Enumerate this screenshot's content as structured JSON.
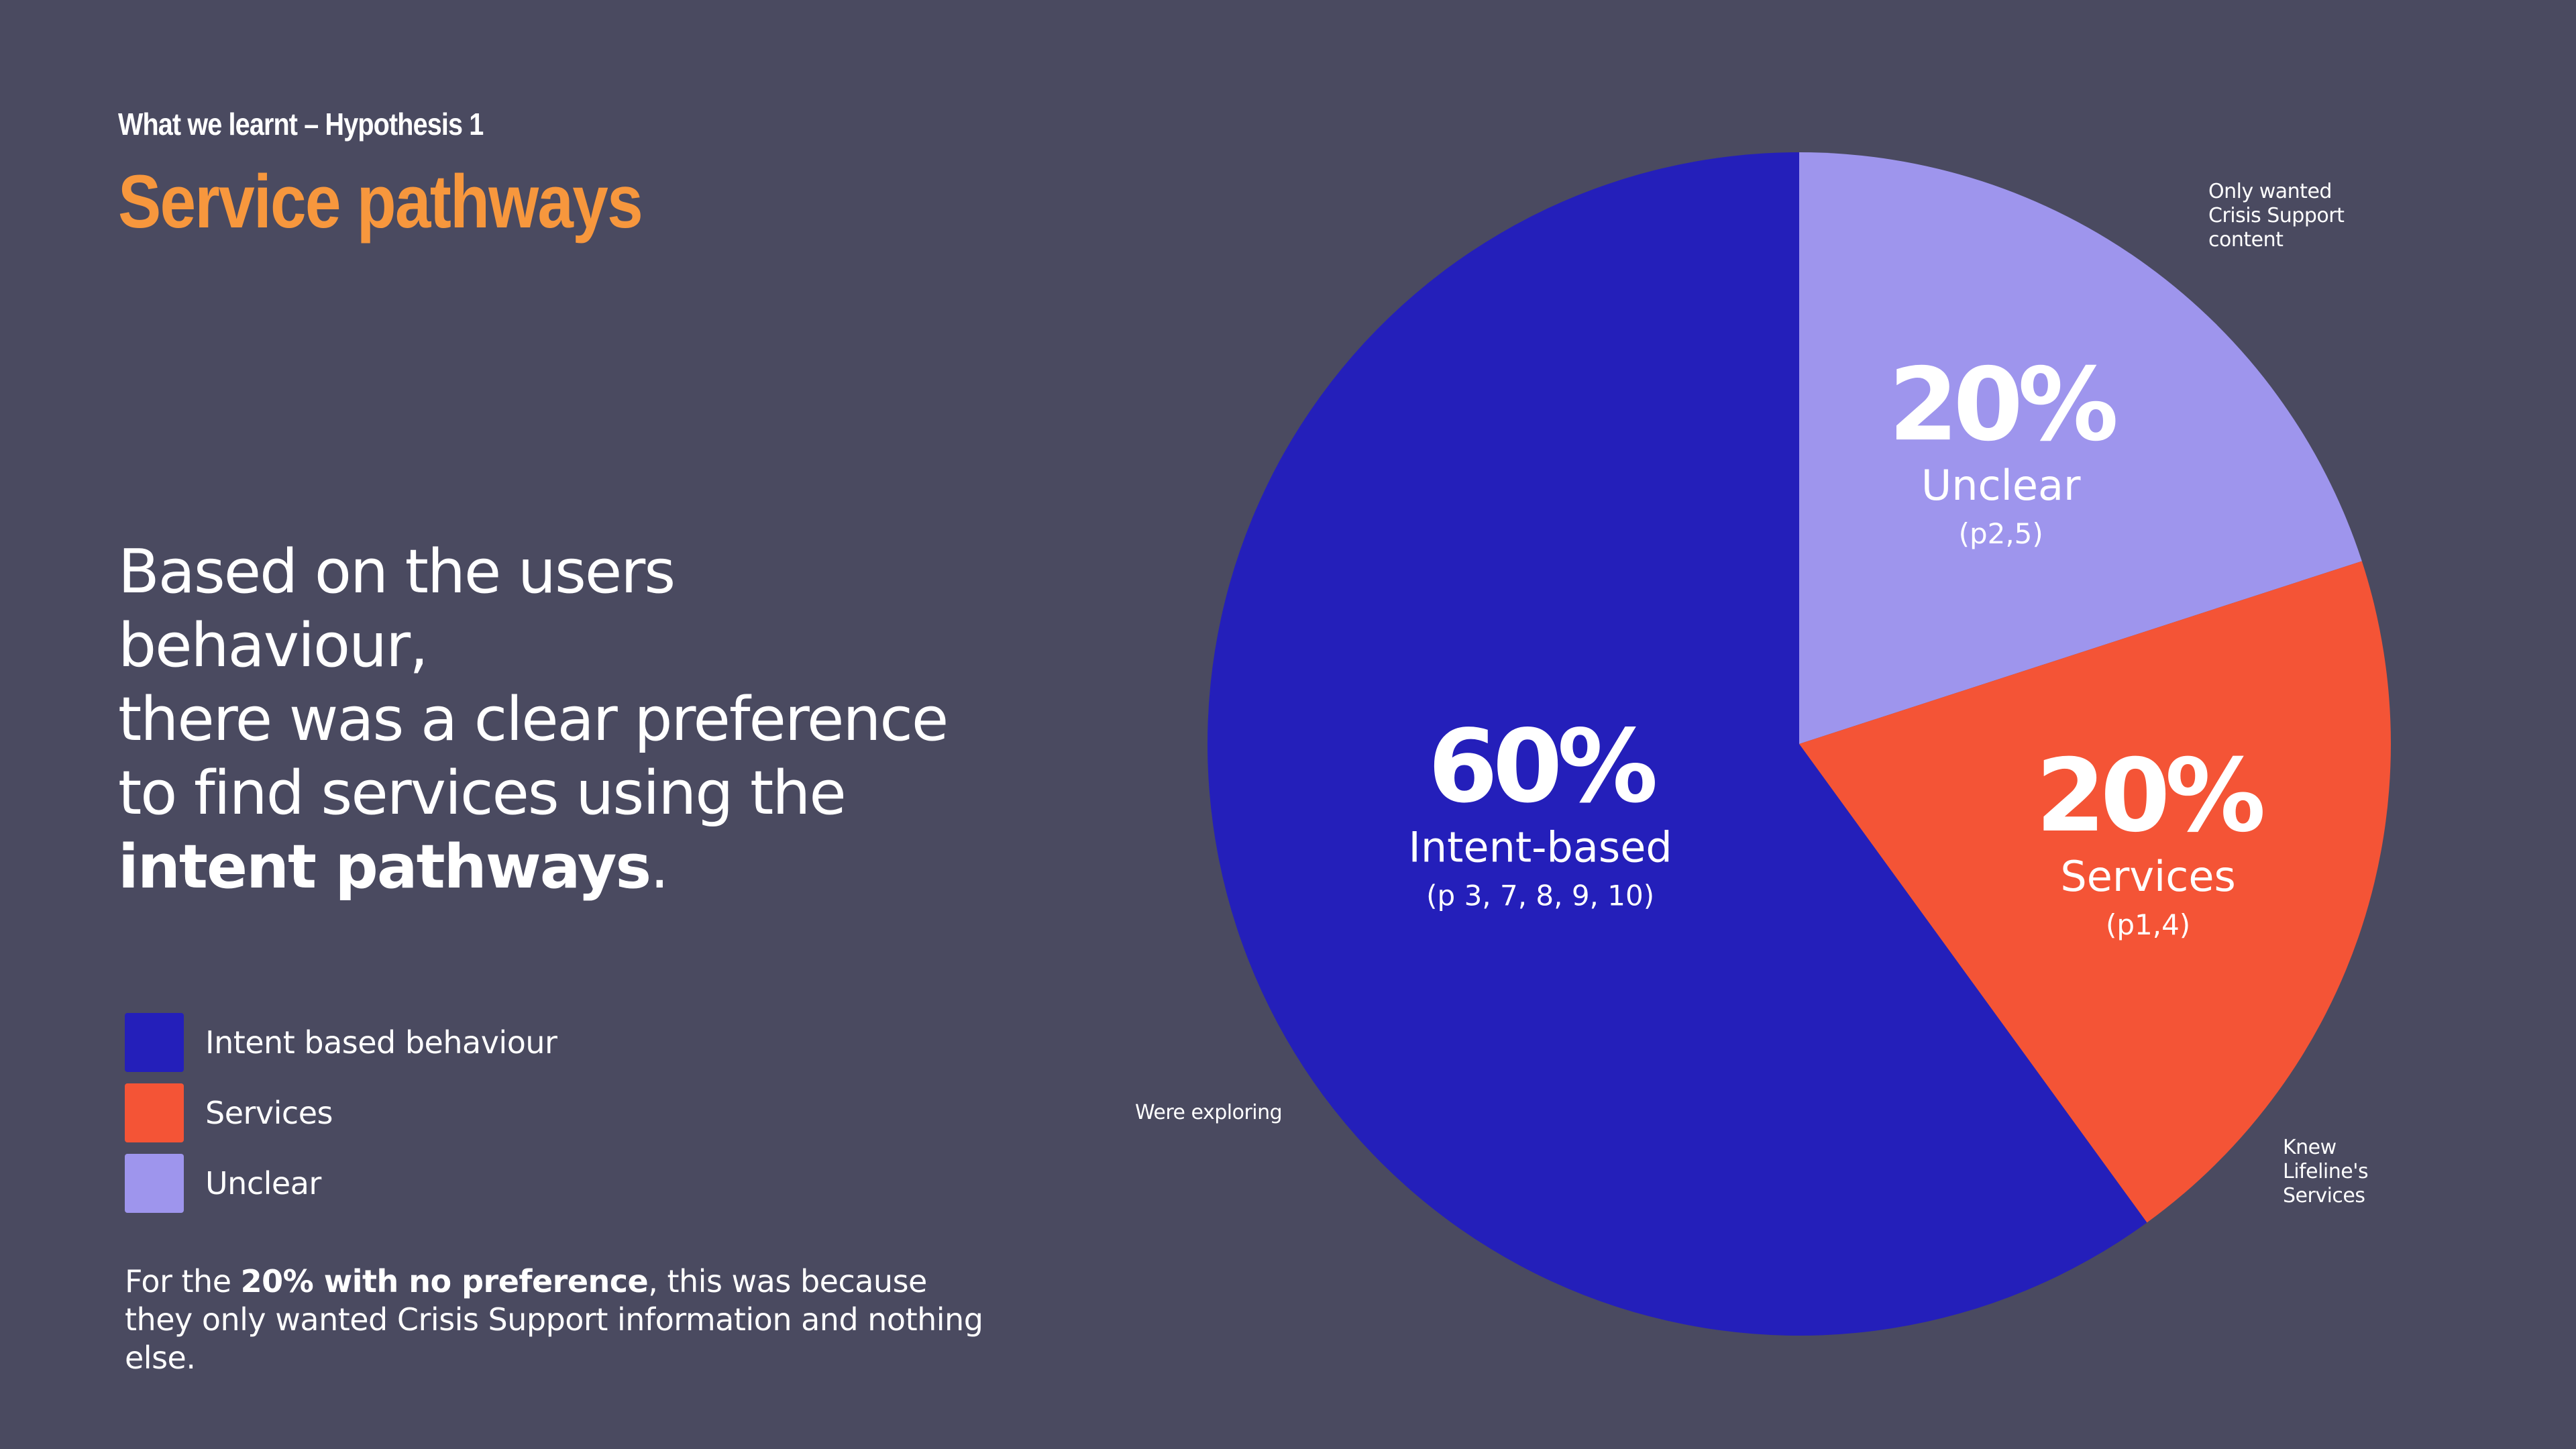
{
  "header": {
    "eyebrow": "What we learnt – Hypothesis 1",
    "title": "Service pathways"
  },
  "statement": {
    "line1": "Based on the users behaviour,",
    "line2": "there was a clear preference",
    "line3": "to find services using the",
    "emphasis": "intent pathways",
    "end": "."
  },
  "legend": [
    {
      "label": "Intent based behaviour",
      "color": "#241fba"
    },
    {
      "label": "Services",
      "color": "#f45436"
    },
    {
      "label": "Unclear",
      "color": "#9e95ed"
    }
  ],
  "footnote": {
    "prefix": "For the ",
    "bold": "20% with no preference",
    "suffix": ", this was because they only wanted Crisis Support information and nothing else."
  },
  "callouts": {
    "unclear": "Only wanted Crisis Support content",
    "services": "Knew Lifeline's Services",
    "intent": "Were exploring"
  },
  "chart_data": {
    "type": "pie",
    "title": "Service pathways",
    "start_angle_deg": 0,
    "direction": "clockwise",
    "slices": [
      {
        "name": "Unclear",
        "value": 20,
        "pct_label": "20%",
        "label": "Unclear",
        "sub": "(p2,5)",
        "color": "#9e95ed"
      },
      {
        "name": "Services",
        "value": 20,
        "pct_label": "20%",
        "label": "Services",
        "sub": "(p1,4)",
        "color": "#f45436"
      },
      {
        "name": "Intent-based",
        "value": 60,
        "pct_label": "60%",
        "label": "Intent-based",
        "sub": "(p 3, 7, 8, 9, 10)",
        "color": "#241fba"
      }
    ]
  }
}
